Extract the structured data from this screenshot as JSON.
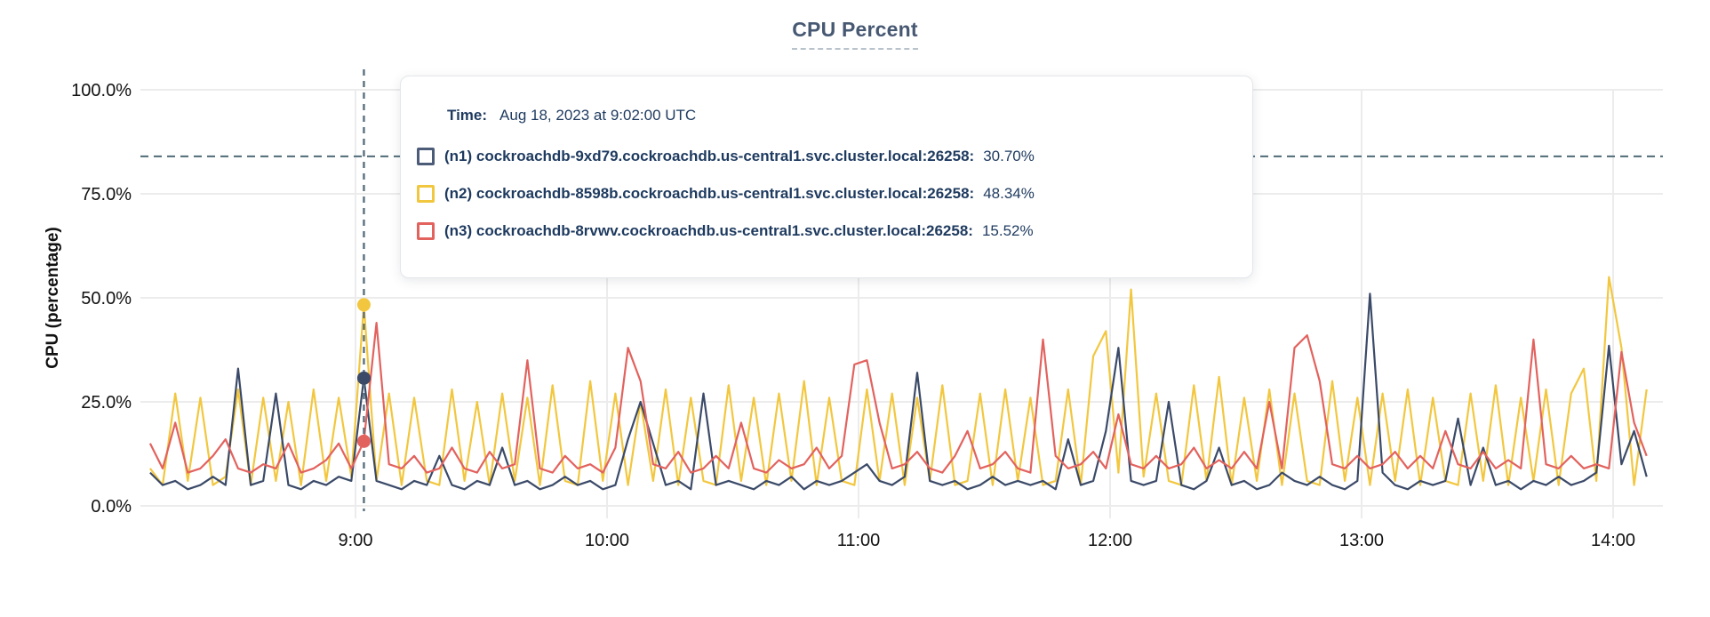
{
  "title": "CPU Percent",
  "tooltip": {
    "time_label": "Time:",
    "time_value": "Aug 18, 2023 at 9:02:00 UTC",
    "rows": [
      {
        "node": "n1",
        "label": "(n1) cockroachdb-9xd79.cockroachdb.us-central1.svc.cluster.local:26258:",
        "value": "30.70%",
        "color": "#4c5b77"
      },
      {
        "node": "n2",
        "label": "(n2) cockroachdb-8598b.cockroachdb.us-central1.svc.cluster.local:26258:",
        "value": "48.34%",
        "color": "#f0c73f"
      },
      {
        "node": "n3",
        "label": "(n3) cockroachdb-8rvwv.cockroachdb.us-central1.svc.cluster.local:26258:",
        "value": "15.52%",
        "color": "#e2625e"
      }
    ]
  },
  "colors": {
    "title": "#475872",
    "tooltip_text": "#1e3a5f",
    "grid": "#ececec",
    "threshold_line": "#4f6b78",
    "crosshair_line": "#5a7080",
    "series_n1": "#3b4a68",
    "series_n2": "#f2c73f",
    "series_n3": "#e2625e"
  },
  "chart_data": {
    "type": "line",
    "title": "CPU Percent",
    "xlabel": "",
    "ylabel": "CPU (percentage)",
    "ylim": [
      0,
      100
    ],
    "grid": true,
    "legend_position": "tooltip-overlay",
    "y_ticks": [
      "100.0%",
      "75.0%",
      "50.0%",
      "25.0%",
      "0.0%"
    ],
    "y_tick_values": [
      100,
      75,
      50,
      25,
      0
    ],
    "x_ticks": [
      "9:00",
      "10:00",
      "11:00",
      "12:00",
      "13:00",
      "14:00"
    ],
    "x_tick_minutes": [
      50,
      110,
      170,
      230,
      290,
      350
    ],
    "x_start": "8:11 UTC",
    "x_interval_minutes": 3,
    "x_range": [
      "8:10",
      "14:10"
    ],
    "threshold_percent": 84,
    "crosshair": {
      "time": "Aug 18, 2023 at 9:02:00 UTC",
      "x_minutes": 52,
      "points": [
        {
          "series": "n2",
          "value": 48.34
        },
        {
          "series": "n1",
          "value": 30.7
        },
        {
          "series": "n3",
          "value": 15.52
        }
      ]
    },
    "series": [
      {
        "name": "(n1) cockroachdb-9xd79.cockroachdb.us-central1.svc.cluster.local:26258",
        "color": "#3b4a68",
        "values": [
          8,
          5,
          6,
          4,
          5,
          7,
          5,
          33,
          5,
          6,
          27,
          5,
          4,
          6,
          5,
          7,
          6,
          30.7,
          6,
          5,
          4,
          6,
          5,
          12,
          5,
          4,
          6,
          5,
          14,
          5,
          6,
          4,
          5,
          7,
          5,
          6,
          4,
          5,
          16,
          25,
          15,
          5,
          6,
          4,
          27,
          5,
          6,
          5,
          4,
          6,
          5,
          7,
          4,
          6,
          5,
          6,
          8,
          10,
          6,
          5,
          7,
          32,
          6,
          5,
          6,
          4,
          5,
          7,
          5,
          6,
          5,
          6,
          4,
          16,
          5,
          6,
          18,
          38,
          6,
          5,
          6,
          25,
          5,
          4,
          6,
          14,
          5,
          6,
          4,
          5,
          8,
          6,
          5,
          7,
          5,
          4,
          6,
          51,
          8,
          5,
          4,
          6,
          5,
          6,
          21,
          5,
          14,
          5,
          6,
          4,
          6,
          5,
          7,
          5,
          6,
          8,
          38.5,
          10,
          18,
          7
        ]
      },
      {
        "name": "(n2) cockroachdb-8598b.cockroachdb.us-central1.svc.cluster.local:26258",
        "color": "#f2c73f",
        "values": [
          9,
          5,
          27,
          6,
          26,
          5,
          7,
          28,
          5,
          26,
          6,
          25,
          5,
          28,
          6,
          26,
          7,
          48.34,
          6,
          27,
          5,
          26,
          6,
          5,
          28,
          6,
          25,
          5,
          27,
          6,
          26,
          5,
          29,
          6,
          5,
          30,
          6,
          27,
          5,
          25,
          6,
          28,
          5,
          26,
          6,
          5,
          29,
          6,
          26,
          5,
          27,
          6,
          30,
          5,
          26,
          6,
          5,
          28,
          6,
          27,
          5,
          26,
          6,
          29,
          5,
          6,
          27,
          5,
          28,
          6,
          26,
          5,
          6,
          28,
          5,
          36,
          42,
          8,
          52,
          7,
          27,
          6,
          5,
          29,
          6,
          31,
          5,
          26,
          6,
          28,
          5,
          27,
          6,
          5,
          30,
          6,
          26,
          5,
          27,
          6,
          28,
          5,
          26,
          6,
          5,
          27,
          6,
          29,
          5,
          26,
          6,
          28,
          5,
          27,
          33,
          6,
          55,
          38,
          5,
          28
        ]
      },
      {
        "name": "(n3) cockroachdb-8rvwv.cockroachdb.us-central1.svc.cluster.local:26258",
        "color": "#e2625e",
        "values": [
          15,
          9,
          20,
          8,
          9,
          12,
          16,
          9,
          8,
          10,
          9,
          15,
          8,
          9,
          11,
          15,
          9,
          15.52,
          44,
          10,
          9,
          12,
          8,
          9,
          14,
          9,
          8,
          13,
          9,
          10,
          35,
          9,
          8,
          12,
          9,
          10,
          8,
          14,
          38,
          30,
          10,
          9,
          13,
          8,
          9,
          12,
          9,
          20,
          9,
          8,
          11,
          9,
          10,
          14,
          9,
          12,
          34,
          35,
          20,
          9,
          10,
          13,
          9,
          8,
          12,
          18,
          9,
          10,
          13,
          9,
          8,
          40,
          12,
          9,
          10,
          13,
          9,
          22,
          10,
          9,
          12,
          9,
          10,
          14,
          9,
          11,
          9,
          13,
          9,
          25,
          9,
          38,
          41,
          30,
          10,
          9,
          12,
          9,
          10,
          13,
          9,
          12,
          9,
          18,
          10,
          9,
          13,
          9,
          11,
          9,
          40,
          10,
          9,
          12,
          9,
          10,
          9,
          37,
          20,
          12
        ]
      }
    ]
  }
}
